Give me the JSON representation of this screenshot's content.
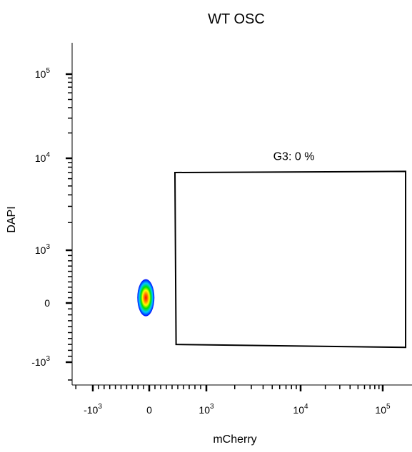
{
  "chart_data": {
    "type": "scatter",
    "title": "WT OSC",
    "xlabel": "mCherry",
    "ylabel": "DAPI",
    "x_scale": "biexponential",
    "y_scale": "biexponential",
    "grid": false,
    "x_ticks": [
      {
        "value": -1000,
        "base": "-10",
        "exp": "3"
      },
      {
        "value": 0,
        "base": "0",
        "exp": ""
      },
      {
        "value": 1000,
        "base": "10",
        "exp": "3"
      },
      {
        "value": 10000,
        "base": "10",
        "exp": "4"
      },
      {
        "value": 100000,
        "base": "10",
        "exp": "5"
      }
    ],
    "y_ticks": [
      {
        "value": -1000,
        "base": "-10",
        "exp": "3"
      },
      {
        "value": 0,
        "base": "0",
        "exp": ""
      },
      {
        "value": 1000,
        "base": "10",
        "exp": "3"
      },
      {
        "value": 10000,
        "base": "10",
        "exp": "4"
      },
      {
        "value": 100000,
        "base": "10",
        "exp": "5"
      }
    ],
    "population": {
      "center": {
        "x": -60,
        "y": 100
      },
      "colors": [
        "#0000ff",
        "#00c8ff",
        "#00e000",
        "#ffff00",
        "#ff8000",
        "#ff0000"
      ]
    },
    "gate": {
      "label": "G3: 0 %",
      "name": "G3",
      "percent": 0,
      "vertices": [
        {
          "x": 450,
          "y": 7000
        },
        {
          "x": 190000,
          "y": 7200
        },
        {
          "x": 190000,
          "y": -750
        },
        {
          "x": 470,
          "y": -700
        }
      ]
    }
  }
}
